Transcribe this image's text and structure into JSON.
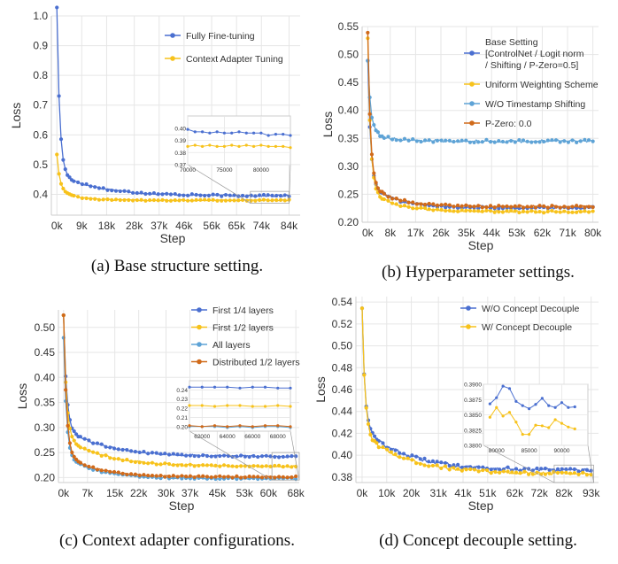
{
  "colors": {
    "blue": "#4a6fd0",
    "yellow": "#f7c21b",
    "lightblue": "#5ea3d6",
    "orange": "#d06a1a",
    "grid": "#e6e6e6",
    "axis": "#555555",
    "text": "#333333"
  },
  "chart_data": [
    {
      "type": "line",
      "caption": "(a) Base structure setting.",
      "xlabel": "Step",
      "ylabel": "Loss",
      "xlim": [
        -2000,
        88000
      ],
      "ylim": [
        0.33,
        1.0
      ],
      "xticks": [
        0,
        9000,
        18000,
        28000,
        37000,
        46000,
        56000,
        65000,
        74000,
        84000
      ],
      "xtick_labels": [
        "0k",
        "9k",
        "18k",
        "28k",
        "37k",
        "46k",
        "56k",
        "65k",
        "74k",
        "84k"
      ],
      "yticks": [
        0.4,
        0.5,
        0.6,
        0.7,
        0.8,
        0.9,
        1.0
      ],
      "ytick_labels": [
        "0.4",
        "0.5",
        "0.6",
        "0.7",
        "0.8",
        "0.9",
        "1.0"
      ],
      "legend_position": "top-right",
      "series": [
        {
          "name": "Fully Fine-tuning",
          "color": "blue",
          "start": 1.03,
          "mid": 0.47,
          "end": 0.395,
          "tau": 15000,
          "noise": 0.003
        },
        {
          "name": "Context Adapter Tuning",
          "color": "yellow",
          "start": 0.535,
          "mid": 0.42,
          "end": 0.38,
          "tau": 6000,
          "noise": 0.002
        }
      ],
      "inset": {
        "xlim": [
          70000,
          84000
        ],
        "ylim": [
          0.37,
          0.41
        ],
        "xticks": [
          70000,
          75000,
          80000
        ],
        "xtick_labels": [
          "70000",
          "75000",
          "80000"
        ],
        "yticks": [
          0.37,
          0.38,
          0.39,
          0.4
        ],
        "ytick_labels": [
          "0.37",
          "0.38",
          "0.39",
          "0.40"
        ],
        "series": [
          {
            "color": "blue",
            "x": [
              70000,
              71000,
              72000,
              73000,
              74000,
              75000,
              76000,
              77000,
              78000,
              79000,
              80000,
              81000,
              82000,
              83000,
              84000
            ],
            "y": [
              0.399,
              0.397,
              0.397,
              0.396,
              0.397,
              0.396,
              0.396,
              0.397,
              0.396,
              0.396,
              0.396,
              0.394,
              0.395,
              0.395,
              0.394
            ]
          },
          {
            "color": "yellow",
            "x": [
              70000,
              71000,
              72000,
              73000,
              74000,
              75000,
              76000,
              77000,
              78000,
              79000,
              80000,
              81000,
              82000,
              83000,
              84000
            ],
            "y": [
              0.385,
              0.386,
              0.385,
              0.386,
              0.385,
              0.385,
              0.386,
              0.385,
              0.386,
              0.385,
              0.386,
              0.385,
              0.385,
              0.385,
              0.384
            ]
          }
        ]
      }
    },
    {
      "type": "line",
      "caption": "(b) Hyperparameter settings.",
      "xlabel": "Step",
      "ylabel": "Loss",
      "xlim": [
        -2000,
        82000
      ],
      "ylim": [
        0.2,
        0.55
      ],
      "xticks": [
        0,
        8000,
        17000,
        26000,
        35000,
        44000,
        53000,
        62000,
        71000,
        80000
      ],
      "xtick_labels": [
        "0k",
        "8k",
        "17k",
        "26k",
        "35k",
        "44k",
        "53k",
        "62k",
        "71k",
        "80k"
      ],
      "yticks": [
        0.2,
        0.25,
        0.3,
        0.35,
        0.4,
        0.45,
        0.5,
        0.55
      ],
      "ytick_labels": [
        "0.20",
        "0.25",
        "0.30",
        "0.35",
        "0.40",
        "0.45",
        "0.50",
        "0.55"
      ],
      "legend_position": "top-right",
      "series": [
        {
          "name": "Base Setting",
          "name_lines": [
            "Base Setting",
            "[ControlNet / Logit norm",
            "/ Shifting / P-Zero=0.5]"
          ],
          "color": "blue",
          "start": 0.49,
          "mid": 0.27,
          "end": 0.226,
          "tau": 9000,
          "noise": 0.002
        },
        {
          "name": "Uniform Weighting Scheme",
          "color": "yellow",
          "start": 0.53,
          "mid": 0.26,
          "end": 0.219,
          "tau": 9000,
          "noise": 0.002
        },
        {
          "name": "W/O Timestamp Shifting",
          "color": "lightblue",
          "start": 0.49,
          "mid": 0.365,
          "end": 0.345,
          "tau": 6000,
          "noise": 0.0025
        },
        {
          "name": "P-Zero: 0.0",
          "color": "orange",
          "start": 0.54,
          "mid": 0.27,
          "end": 0.228,
          "tau": 9000,
          "noise": 0.002
        }
      ]
    },
    {
      "type": "line",
      "caption": "(c) Context adapter configurations.",
      "xlabel": "Step",
      "ylabel": "Loss",
      "xlim": [
        -1500,
        69000
      ],
      "ylim": [
        0.19,
        0.535
      ],
      "xticks": [
        0,
        7000,
        15000,
        22000,
        30000,
        37000,
        45000,
        53000,
        60000,
        68000
      ],
      "xtick_labels": [
        "0k",
        "7k",
        "15k",
        "22k",
        "30k",
        "37k",
        "45k",
        "53k",
        "60k",
        "68k"
      ],
      "yticks": [
        0.2,
        0.25,
        0.3,
        0.35,
        0.4,
        0.45,
        0.5
      ],
      "ytick_labels": [
        "0.20",
        "0.25",
        "0.30",
        "0.35",
        "0.40",
        "0.45",
        "0.50"
      ],
      "legend_position": "top-right",
      "series": [
        {
          "name": "First 1/4 layers",
          "color": "blue",
          "start": 0.525,
          "mid": 0.3,
          "end": 0.242,
          "tau": 12000,
          "noise": 0.0018
        },
        {
          "name": "First 1/2 layers",
          "color": "yellow",
          "start": 0.525,
          "mid": 0.28,
          "end": 0.222,
          "tau": 12000,
          "noise": 0.0018
        },
        {
          "name": "All layers",
          "color": "lightblue",
          "start": 0.48,
          "mid": 0.245,
          "end": 0.198,
          "tau": 9000,
          "noise": 0.0015
        },
        {
          "name": "Distributed 1/2 layers",
          "color": "orange",
          "start": 0.525,
          "mid": 0.25,
          "end": 0.201,
          "tau": 9000,
          "noise": 0.0015
        }
      ],
      "inset": {
        "xlim": [
          61000,
          69000
        ],
        "ylim": [
          0.195,
          0.25
        ],
        "xticks": [
          62000,
          64000,
          66000,
          68000
        ],
        "xtick_labels": [
          "62000",
          "64000",
          "66000",
          "68000"
        ],
        "yticks": [
          0.2,
          0.21,
          0.22,
          0.23,
          0.24
        ],
        "ytick_labels": [
          "0.20",
          "0.21",
          "0.22",
          "0.23",
          "0.24"
        ],
        "series": [
          {
            "color": "blue",
            "x": [
              61000,
              62000,
              63000,
              64000,
              65000,
              66000,
              67000,
              68000,
              69000
            ],
            "y": [
              0.243,
              0.243,
              0.243,
              0.243,
              0.242,
              0.243,
              0.243,
              0.242,
              0.242
            ]
          },
          {
            "color": "yellow",
            "x": [
              61000,
              62000,
              63000,
              64000,
              65000,
              66000,
              67000,
              68000,
              69000
            ],
            "y": [
              0.223,
              0.223,
              0.222,
              0.223,
              0.223,
              0.222,
              0.222,
              0.223,
              0.222
            ]
          },
          {
            "color": "lightblue",
            "x": [
              61000,
              62000,
              63000,
              64000,
              65000,
              66000,
              67000,
              68000,
              69000
            ],
            "y": [
              0.2,
              0.2,
              0.2,
              0.199,
              0.2,
              0.199,
              0.2,
              0.2,
              0.199
            ]
          },
          {
            "color": "orange",
            "x": [
              61000,
              62000,
              63000,
              64000,
              65000,
              66000,
              67000,
              68000,
              69000
            ],
            "y": [
              0.201,
              0.2,
              0.201,
              0.2,
              0.201,
              0.2,
              0.201,
              0.201,
              0.2
            ]
          }
        ]
      }
    },
    {
      "type": "line",
      "caption": "(d) Concept decouple setting.",
      "xlabel": "Step",
      "ylabel": "Loss",
      "xlim": [
        -2500,
        96000
      ],
      "ylim": [
        0.375,
        0.545
      ],
      "xticks": [
        0,
        10000,
        20000,
        31000,
        41000,
        51000,
        62000,
        72000,
        82000,
        93000
      ],
      "xtick_labels": [
        "0k",
        "10k",
        "20k",
        "31k",
        "41k",
        "51k",
        "62k",
        "72k",
        "82k",
        "93k"
      ],
      "yticks": [
        0.38,
        0.4,
        0.42,
        0.44,
        0.46,
        0.48,
        0.5,
        0.52,
        0.54
      ],
      "ytick_labels": [
        "0.38",
        "0.40",
        "0.42",
        "0.44",
        "0.46",
        "0.48",
        "0.50",
        "0.52",
        "0.54"
      ],
      "legend_position": "top-right",
      "series": [
        {
          "name": "W/O Concept Decouple",
          "color": "blue",
          "start": 0.535,
          "mid": 0.425,
          "end": 0.386,
          "tau": 18000,
          "noise": 0.0015
        },
        {
          "name": "W/ Concept Decouple",
          "color": "yellow",
          "start": 0.535,
          "mid": 0.42,
          "end": 0.383,
          "tau": 18000,
          "noise": 0.0015
        }
      ],
      "inset": {
        "xlim": [
          78000,
          94000
        ],
        "ylim": [
          0.38,
          0.39
        ],
        "xticks": [
          80000,
          85000,
          90000
        ],
        "xtick_labels": [
          "80000",
          "85000",
          "90000"
        ],
        "yticks": [
          0.38,
          0.3825,
          0.385,
          0.3875,
          0.39
        ],
        "ytick_labels": [
          "0.3800",
          "0.3825",
          "0.3850",
          "0.3875",
          "0.3900"
        ],
        "series": [
          {
            "color": "blue",
            "x": [
              79000,
              80000,
              81000,
              82000,
              83000,
              84000,
              85000,
              86000,
              87000,
              88000,
              89000,
              90000,
              91000,
              92000
            ],
            "y": [
              0.3868,
              0.3878,
              0.3897,
              0.3893,
              0.3872,
              0.3865,
              0.386,
              0.3867,
              0.3877,
              0.3865,
              0.3862,
              0.387,
              0.3862,
              0.3863
            ]
          },
          {
            "color": "yellow",
            "x": [
              79000,
              80000,
              81000,
              82000,
              83000,
              84000,
              85000,
              86000,
              87000,
              88000,
              89000,
              90000,
              91000,
              92000
            ],
            "y": [
              0.3846,
              0.3862,
              0.3848,
              0.3854,
              0.3838,
              0.3818,
              0.3818,
              0.3833,
              0.3832,
              0.3829,
              0.3842,
              0.3836,
              0.383,
              0.3827
            ]
          }
        ]
      }
    }
  ]
}
